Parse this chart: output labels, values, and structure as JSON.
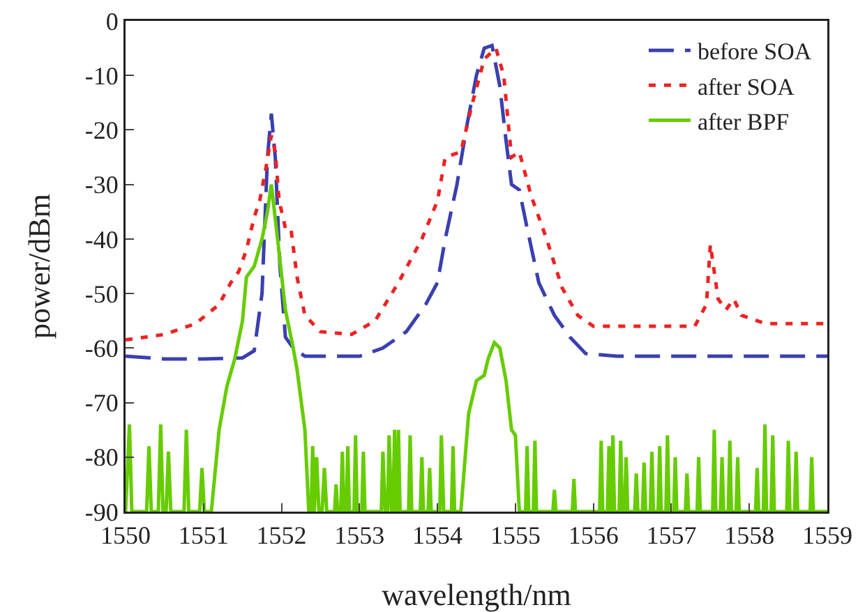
{
  "chart_data": {
    "type": "line",
    "xlabel": "wavelength/nm",
    "ylabel": "power/dBm",
    "xlim": [
      1550,
      1559
    ],
    "xticks": [
      1550,
      1551,
      1552,
      1553,
      1554,
      1555,
      1556,
      1557,
      1558,
      1559
    ],
    "ylim": [
      -90,
      0
    ],
    "yticks": [
      -90,
      -80,
      -70,
      -60,
      -50,
      -40,
      -30,
      -20,
      -10,
      0
    ],
    "grid": false,
    "legend": "top right",
    "marker": "none",
    "series": [
      {
        "name": "before SOA",
        "color": "#3a3fb0",
        "line_style": "dashed",
        "x": [
          1550,
          1550.5,
          1551,
          1551.5,
          1551.65,
          1551.75,
          1551.82,
          1551.87,
          1551.92,
          1551.98,
          1552.05,
          1552.15,
          1552.3,
          1553,
          1553.3,
          1553.6,
          1553.85,
          1554,
          1554.1,
          1554.25,
          1554.38,
          1554.5,
          1554.6,
          1554.7,
          1554.8,
          1554.88,
          1554.95,
          1555.05,
          1555.15,
          1555.3,
          1555.5,
          1555.7,
          1555.9,
          1556.3,
          1559
        ],
        "values": [
          -61.5,
          -62,
          -62,
          -61.8,
          -60.5,
          -50,
          -25,
          -17,
          -25,
          -45,
          -58,
          -60,
          -61.5,
          -61.5,
          -60,
          -57,
          -52,
          -48,
          -40,
          -30,
          -19,
          -10,
          -5,
          -4.5,
          -12,
          -22,
          -30,
          -31,
          -38,
          -48,
          -54,
          -58,
          -61,
          -61.5,
          -61.5
        ]
      },
      {
        "name": "after SOA",
        "color": "#ee2222",
        "line_style": "dotted",
        "x": [
          1550,
          1550.5,
          1550.9,
          1551.2,
          1551.35,
          1551.45,
          1551.55,
          1551.65,
          1551.72,
          1551.8,
          1551.87,
          1551.92,
          1551.97,
          1552.05,
          1552.12,
          1552.2,
          1552.3,
          1552.5,
          1552.9,
          1553.2,
          1553.5,
          1553.8,
          1554,
          1554.1,
          1554.3,
          1554.45,
          1554.6,
          1554.75,
          1554.85,
          1554.95,
          1555.05,
          1555.2,
          1555.4,
          1555.6,
          1555.8,
          1556,
          1557.3,
          1557.45,
          1557.5,
          1557.6,
          1557.7,
          1557.8,
          1557.9,
          1558.2,
          1559
        ],
        "values": [
          -58.5,
          -57.5,
          -55.5,
          -52,
          -48,
          -46,
          -42,
          -36,
          -33,
          -27,
          -21,
          -24,
          -33,
          -38,
          -38,
          -47,
          -54,
          -57,
          -57.5,
          -55,
          -48,
          -40,
          -33,
          -25,
          -24,
          -15,
          -7,
          -5,
          -10,
          -25,
          -24,
          -32,
          -40,
          -49,
          -54,
          -56,
          -56,
          -52,
          -41,
          -51,
          -53,
          -51,
          -54,
          -55.5,
          -55.5
        ]
      },
      {
        "name": "after BPF",
        "color": "#66cc00",
        "line_style": "solid",
        "x": [
          1550,
          1550.05,
          1550.08,
          1550.27,
          1550.3,
          1550.33,
          1550.42,
          1550.45,
          1550.48,
          1550.52,
          1550.55,
          1550.58,
          1550.75,
          1550.78,
          1550.81,
          1550.95,
          1550.98,
          1551.01,
          1551.05,
          1551.1,
          1551.2,
          1551.3,
          1551.4,
          1551.5,
          1551.55,
          1551.65,
          1551.75,
          1551.82,
          1551.87,
          1551.95,
          1552.05,
          1552.15,
          1552.2,
          1552.3,
          1552.35,
          1552.38,
          1552.4,
          1552.42,
          1552.45,
          1552.48,
          1552.52,
          1552.55,
          1552.58,
          1552.68,
          1552.7,
          1552.72,
          1552.76,
          1552.78,
          1552.8,
          1552.83,
          1552.85,
          1552.87,
          1552.93,
          1552.95,
          1552.97,
          1553.03,
          1553.05,
          1553.07,
          1553.28,
          1553.3,
          1553.33,
          1553.36,
          1553.38,
          1553.41,
          1553.43,
          1553.45,
          1553.47,
          1553.49,
          1553.5,
          1553.52,
          1553.63,
          1553.65,
          1553.67,
          1553.78,
          1553.8,
          1553.82,
          1553.88,
          1553.9,
          1553.92,
          1554.03,
          1554.05,
          1554.08,
          1554.18,
          1554.2,
          1554.22,
          1554.3,
          1554.4,
          1554.5,
          1554.6,
          1554.65,
          1554.73,
          1554.8,
          1554.88,
          1554.95,
          1555,
          1555.05,
          1555.13,
          1555.15,
          1555.17,
          1555.23,
          1555.25,
          1555.27,
          1555.48,
          1555.5,
          1555.52,
          1555.73,
          1555.75,
          1555.77,
          1556.08,
          1556.1,
          1556.12,
          1556.18,
          1556.2,
          1556.22,
          1556.23,
          1556.25,
          1556.27,
          1556.33,
          1556.35,
          1556.37,
          1556.4,
          1556.42,
          1556.44,
          1556.53,
          1556.55,
          1556.57,
          1556.63,
          1556.65,
          1556.67,
          1556.73,
          1556.75,
          1556.77,
          1556.83,
          1556.85,
          1556.87,
          1556.93,
          1556.95,
          1556.97,
          1557.03,
          1557.05,
          1557.07,
          1557.18,
          1557.2,
          1557.22,
          1557.33,
          1557.35,
          1557.37,
          1557.53,
          1557.55,
          1557.57,
          1557.63,
          1557.65,
          1557.67,
          1557.73,
          1557.75,
          1557.77,
          1557.83,
          1557.85,
          1557.87,
          1558.08,
          1558.1,
          1558.12,
          1558.18,
          1558.2,
          1558.22,
          1558.28,
          1558.3,
          1558.32,
          1558.48,
          1558.5,
          1558.52,
          1558.58,
          1558.6,
          1558.62,
          1558.78,
          1558.8,
          1558.82,
          1559
        ],
        "values": [
          -90,
          -74,
          -90,
          -90,
          -78,
          -90,
          -90,
          -74,
          -90,
          -90,
          -79,
          -90,
          -90,
          -75,
          -90,
          -90,
          -82,
          -90,
          -90,
          -90,
          -75,
          -67,
          -62,
          -55,
          -47,
          -45,
          -40,
          -35,
          -30,
          -40,
          -53,
          -60,
          -64,
          -75,
          -90,
          -90,
          -78,
          -90,
          -80,
          -90,
          -90,
          -82,
          -90,
          -90,
          -85,
          -90,
          -90,
          -79,
          -90,
          -90,
          -78,
          -90,
          -90,
          -76,
          -90,
          -90,
          -79,
          -90,
          -90,
          -79,
          -90,
          -90,
          -76,
          -90,
          -90,
          -75,
          -90,
          -90,
          -75,
          -90,
          -90,
          -76,
          -90,
          -90,
          -80,
          -90,
          -90,
          -82,
          -90,
          -90,
          -76,
          -90,
          -90,
          -78,
          -90,
          -90,
          -72,
          -66,
          -65,
          -62,
          -59,
          -60,
          -66,
          -75,
          -76,
          -90,
          -90,
          -78,
          -90,
          -90,
          -77,
          -90,
          -90,
          -86,
          -90,
          -90,
          -84,
          -90,
          -90,
          -77,
          -90,
          -90,
          -78,
          -90,
          -90,
          -76,
          -90,
          -90,
          -77,
          -90,
          -90,
          -80,
          -90,
          -90,
          -83,
          -90,
          -90,
          -81,
          -90,
          -90,
          -79,
          -90,
          -90,
          -78,
          -90,
          -90,
          -76,
          -90,
          -90,
          -80,
          -90,
          -90,
          -83,
          -90,
          -90,
          -80,
          -90,
          -90,
          -75,
          -90,
          -90,
          -80,
          -90,
          -90,
          -77,
          -90,
          -90,
          -80,
          -90,
          -90,
          -82,
          -90,
          -90,
          -74,
          -90,
          -90,
          -76,
          -90,
          -90,
          -77,
          -90,
          -90,
          -79,
          -90,
          -90,
          -80,
          -90,
          -90
        ]
      }
    ]
  }
}
